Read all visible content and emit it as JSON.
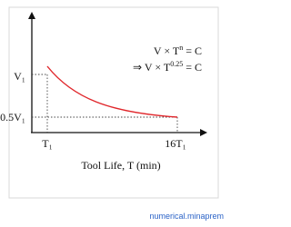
{
  "diagram": {
    "labels": {
      "v1": "V₁",
      "half_v1": "0.5V₁",
      "t1": "T₁",
      "t16": "16T₁",
      "x_axis": "Tool Life, T (min)"
    },
    "equations": [
      {
        "base": "V × T",
        "sup": "n",
        "rest": " =  C"
      },
      {
        "base": "⇒ V × T",
        "sup": "0.25",
        "rest": " = C"
      }
    ],
    "watermark": "numerical.minaprem"
  }
}
